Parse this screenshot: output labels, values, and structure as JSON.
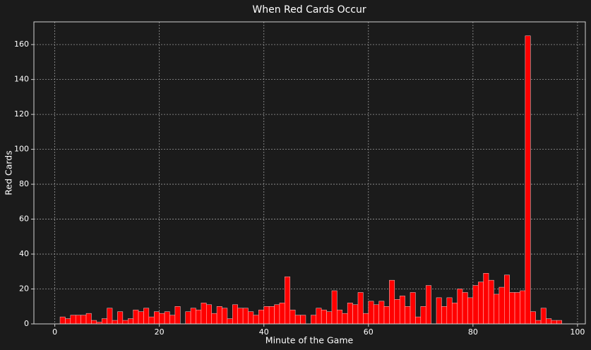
{
  "chart_data": {
    "type": "histogram",
    "title": "When Red Cards Occur",
    "xlabel": "Minute  of the Game",
    "ylabel": "Red Cards",
    "bins": [
      1,
      2,
      3,
      4,
      5,
      6,
      7,
      8,
      9,
      10,
      11,
      12,
      13,
      14,
      15,
      16,
      17,
      18,
      19,
      20,
      21,
      22,
      23,
      24,
      25,
      26,
      27,
      28,
      29,
      30,
      31,
      32,
      33,
      34,
      35,
      36,
      37,
      38,
      39,
      40,
      41,
      42,
      43,
      44,
      45,
      46,
      47,
      48,
      49,
      50,
      51,
      52,
      53,
      54,
      55,
      56,
      57,
      58,
      59,
      60,
      61,
      62,
      63,
      64,
      65,
      66,
      67,
      68,
      69,
      70,
      71,
      72,
      73,
      74,
      75,
      76,
      77,
      78,
      79,
      80,
      81,
      82,
      83,
      84,
      85,
      86,
      87,
      88,
      89,
      90,
      91,
      92,
      93,
      94,
      95,
      96,
      97
    ],
    "counts": [
      4,
      3,
      5,
      5,
      5,
      6,
      2,
      1,
      3,
      9,
      2,
      7,
      2,
      3,
      8,
      7,
      9,
      4,
      7,
      6,
      7,
      5,
      10,
      0,
      7,
      9,
      8,
      12,
      11,
      6,
      10,
      9,
      3,
      11,
      9,
      9,
      7,
      5,
      8,
      10,
      10,
      11,
      12,
      27,
      8,
      5,
      5,
      0,
      5,
      9,
      8,
      7,
      19,
      8,
      6,
      12,
      11,
      18,
      6,
      13,
      11,
      13,
      10,
      25,
      14,
      16,
      10,
      18,
      4,
      10,
      22,
      0,
      15,
      10,
      15,
      12,
      20,
      18,
      15,
      22,
      24,
      29,
      25,
      17,
      21,
      28,
      18,
      18,
      19,
      165,
      7,
      2,
      9,
      3,
      2,
      2
    ],
    "color": "#ff0000",
    "xlim": [
      -4,
      101.5
    ],
    "ylim": [
      0,
      173
    ],
    "xticks": [
      0,
      20,
      40,
      60,
      80,
      100
    ],
    "yticks": [
      0,
      20,
      40,
      60,
      80,
      100,
      120,
      140,
      160
    ],
    "grid": true
  }
}
